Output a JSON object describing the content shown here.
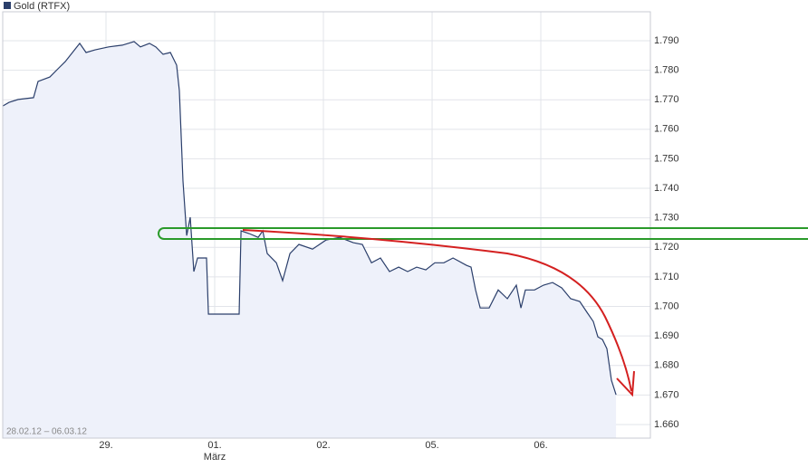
{
  "chart_data": {
    "type": "line",
    "title": "Gold (RTFX)",
    "date_range": "28.02.12 – 06.03.12",
    "month_label": "März",
    "color": "#2b3f6b",
    "area_color": "#eef1fa",
    "grid": true,
    "xlim": [
      0,
      5.958
    ],
    "xticks": [
      {
        "value": 0.95,
        "label": "29."
      },
      {
        "value": 1.95,
        "label": "01."
      },
      {
        "value": 2.95,
        "label": "02."
      },
      {
        "value": 3.95,
        "label": "05."
      },
      {
        "value": 4.95,
        "label": "06."
      }
    ],
    "ylim": [
      1655.4,
      1799.8
    ],
    "yticks": [
      {
        "value": 1660,
        "label": "1.660"
      },
      {
        "value": 1670,
        "label": "1.670"
      },
      {
        "value": 1680,
        "label": "1.680"
      },
      {
        "value": 1690,
        "label": "1.690"
      },
      {
        "value": 1700,
        "label": "1.700"
      },
      {
        "value": 1710,
        "label": "1.710"
      },
      {
        "value": 1720,
        "label": "1.720"
      },
      {
        "value": 1730,
        "label": "1.730"
      },
      {
        "value": 1740,
        "label": "1.740"
      },
      {
        "value": 1750,
        "label": "1.750"
      },
      {
        "value": 1760,
        "label": "1.760"
      },
      {
        "value": 1770,
        "label": "1.770"
      },
      {
        "value": 1780,
        "label": "1.780"
      },
      {
        "value": 1790,
        "label": "1.790"
      }
    ],
    "series": [
      {
        "name": "Gold (RTFX)",
        "color": "#2b3f6b",
        "x": [
          0,
          0.058,
          0.142,
          0.283,
          0.325,
          0.433,
          0.517,
          0.575,
          0.642,
          0.708,
          0.767,
          0.85,
          0.975,
          1.1,
          1.208,
          1.267,
          1.35,
          1.408,
          1.475,
          1.542,
          1.6,
          1.625,
          1.658,
          1.692,
          1.725,
          1.758,
          1.792,
          1.875,
          1.892,
          2.175,
          2.192,
          2.267,
          2.35,
          2.392,
          2.433,
          2.517,
          2.575,
          2.642,
          2.725,
          2.85,
          2.975,
          3.1,
          3.225,
          3.308,
          3.392,
          3.475,
          3.558,
          3.642,
          3.725,
          3.808,
          3.892,
          3.975,
          4.058,
          4.142,
          4.267,
          4.308,
          4.35,
          4.392,
          4.475,
          4.558,
          4.642,
          4.725,
          4.767,
          4.808,
          4.892,
          4.975,
          5.058,
          5.142,
          5.225,
          5.308,
          5.375,
          5.433,
          5.475,
          5.517,
          5.558,
          5.6,
          5.642
        ],
        "values": [
          1767.9,
          1769.1,
          1770.1,
          1770.7,
          1776.2,
          1777.7,
          1780.8,
          1782.9,
          1786.0,
          1789.1,
          1786.0,
          1786.9,
          1787.9,
          1788.5,
          1789.7,
          1787.9,
          1789.1,
          1787.9,
          1785.4,
          1786.0,
          1781.7,
          1773.1,
          1742.5,
          1724.0,
          1730.2,
          1711.8,
          1716.4,
          1716.4,
          1697.4,
          1697.4,
          1725.6,
          1724.7,
          1723.4,
          1725.6,
          1717.9,
          1714.8,
          1708.7,
          1717.9,
          1721.0,
          1719.4,
          1722.5,
          1723.4,
          1721.6,
          1721.0,
          1714.8,
          1716.4,
          1711.8,
          1713.3,
          1711.8,
          1713.3,
          1712.4,
          1714.8,
          1714.8,
          1716.4,
          1713.9,
          1713.3,
          1705.6,
          1699.5,
          1699.5,
          1705.6,
          1702.6,
          1707.2,
          1699.5,
          1705.6,
          1705.6,
          1707.2,
          1708.1,
          1706.3,
          1702.6,
          1701.7,
          1698.0,
          1694.9,
          1689.7,
          1688.8,
          1685.7,
          1675.0,
          1670.1
        ]
      }
    ]
  }
}
